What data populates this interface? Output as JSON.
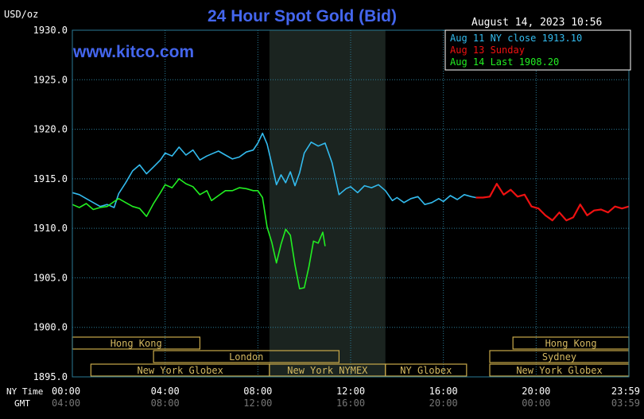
{
  "chart_data": {
    "type": "line",
    "title": "24 Hour Spot Gold (Bid)",
    "unit_label": "USD/oz",
    "watermark": "www.kitco.com",
    "timestamp": "August 14, 2023 10:56",
    "y_ticks": [
      "1930.0",
      "1925.0",
      "1920.0",
      "1915.0",
      "1910.0",
      "1905.0",
      "1900.0",
      "1895.0"
    ],
    "ylim": [
      1895,
      1930
    ],
    "xlim_hours": [
      0,
      24
    ],
    "x_ticks_ny": [
      "00:00",
      "04:00",
      "08:00",
      "12:00",
      "16:00",
      "20:00",
      "23:59"
    ],
    "x_ticks_gmt": [
      "04:00",
      "08:00",
      "12:00",
      "16:00",
      "20:00",
      "00:00",
      "03:59"
    ],
    "x_axis_labels": {
      "ny": "NY Time",
      "gmt": "GMT"
    },
    "legend": [
      {
        "label": "Aug 11 NY close 1913.10",
        "color": "#33bbee"
      },
      {
        "label": "Aug 13 Sunday",
        "color": "#ee1111"
      },
      {
        "label": "Aug 14 Last 1908.20",
        "color": "#22ee22"
      }
    ],
    "colors": {
      "aug11": "#33bbee",
      "aug13": "#ee1111",
      "aug14": "#22ee22",
      "grid": "#2a7a96",
      "axis_text": "#ffffff",
      "title": "#4466ee",
      "watermark": "#4466ee",
      "shade": "#1b2420",
      "session_border": "#c9a94a",
      "session_text": "#d4b860"
    },
    "shaded_region_hours": [
      8.5,
      13.5
    ],
    "sessions": [
      {
        "label": "Hong Kong",
        "row": 0,
        "start": 0,
        "end": 5.5
      },
      {
        "label": "London",
        "row": 1,
        "start": 3.5,
        "end": 11.5
      },
      {
        "label": "New York Globex",
        "row": 2,
        "start": 0.8,
        "end": 8.5
      },
      {
        "label": "New York NYMEX",
        "row": 2,
        "start": 8.5,
        "end": 13.5
      },
      {
        "label": "NY Globex",
        "row": 2,
        "start": 13.5,
        "end": 17.0
      },
      {
        "label": "Hong Kong",
        "row": 0,
        "start": 19.0,
        "end": 24.0
      },
      {
        "label": "Sydney",
        "row": 1,
        "start": 18.0,
        "end": 24.0
      },
      {
        "label": "New York Globex",
        "row": 2,
        "start": 18.0,
        "end": 24.0
      }
    ],
    "series": [
      {
        "name": "Aug 11 NY close 1913.10",
        "key": "aug11",
        "x": [
          0,
          0.3,
          0.6,
          0.9,
          1.2,
          1.5,
          1.8,
          2.0,
          2.3,
          2.6,
          2.9,
          3.2,
          3.5,
          3.8,
          4.0,
          4.3,
          4.6,
          4.9,
          5.2,
          5.5,
          5.8,
          6.0,
          6.3,
          6.6,
          6.9,
          7.2,
          7.5,
          7.8,
          8.0,
          8.2,
          8.4,
          8.6,
          8.8,
          9.0,
          9.2,
          9.4,
          9.6,
          9.8,
          10.0,
          10.3,
          10.6,
          10.9,
          11.2,
          11.5,
          11.8,
          12.0,
          12.3,
          12.6,
          12.9,
          13.2,
          13.5,
          13.8,
          14.0,
          14.3,
          14.6,
          14.9,
          15.2,
          15.5,
          15.8,
          16.0,
          16.3,
          16.6,
          16.9,
          17.2,
          17.4
        ],
        "values": [
          1913.6,
          1913.4,
          1913.0,
          1912.6,
          1912.2,
          1912.4,
          1912.1,
          1913.5,
          1914.6,
          1915.8,
          1916.4,
          1915.5,
          1916.2,
          1916.9,
          1917.6,
          1917.3,
          1918.2,
          1917.4,
          1917.9,
          1916.9,
          1917.3,
          1917.5,
          1917.8,
          1917.4,
          1917.0,
          1917.2,
          1917.7,
          1917.9,
          1918.6,
          1919.6,
          1918.5,
          1916.5,
          1914.4,
          1915.4,
          1914.6,
          1915.7,
          1914.3,
          1915.6,
          1917.6,
          1918.7,
          1918.3,
          1918.6,
          1916.6,
          1913.4,
          1914.0,
          1914.2,
          1913.6,
          1914.3,
          1914.1,
          1914.4,
          1913.8,
          1912.8,
          1913.1,
          1912.6,
          1913.0,
          1913.2,
          1912.4,
          1912.6,
          1913.0,
          1912.7,
          1913.3,
          1912.9,
          1913.4,
          1913.2,
          1913.1
        ]
      },
      {
        "name": "Aug 13 Sunday",
        "key": "aug13",
        "x": [
          17.4,
          17.7,
          18.0,
          18.3,
          18.6,
          18.9,
          19.2,
          19.5,
          19.8,
          20.1,
          20.4,
          20.7,
          21.0,
          21.3,
          21.6,
          21.9,
          22.2,
          22.5,
          22.8,
          23.1,
          23.4,
          23.7,
          24.0
        ],
        "values": [
          1913.1,
          1913.1,
          1913.2,
          1914.5,
          1913.4,
          1913.9,
          1913.2,
          1913.4,
          1912.2,
          1912.0,
          1911.3,
          1910.8,
          1911.6,
          1910.8,
          1911.1,
          1912.4,
          1911.3,
          1911.8,
          1911.9,
          1911.6,
          1912.2,
          1912.0,
          1912.2
        ]
      },
      {
        "name": "Aug 14 Last 1908.20",
        "key": "aug14",
        "x": [
          0,
          0.3,
          0.6,
          0.9,
          1.2,
          1.5,
          1.8,
          2.0,
          2.3,
          2.6,
          2.9,
          3.2,
          3.5,
          3.8,
          4.0,
          4.3,
          4.6,
          4.9,
          5.2,
          5.5,
          5.8,
          6.0,
          6.3,
          6.6,
          6.9,
          7.2,
          7.5,
          7.8,
          8.0,
          8.2,
          8.4,
          8.6,
          8.8,
          9.0,
          9.2,
          9.4,
          9.6,
          9.8,
          10.0,
          10.2,
          10.4,
          10.6,
          10.8,
          10.9
        ],
        "values": [
          1912.4,
          1912.1,
          1912.5,
          1911.9,
          1912.1,
          1912.2,
          1912.7,
          1913.0,
          1912.6,
          1912.2,
          1912.0,
          1911.2,
          1912.5,
          1913.6,
          1914.4,
          1914.1,
          1915.0,
          1914.5,
          1914.2,
          1913.4,
          1913.8,
          1912.8,
          1913.3,
          1913.8,
          1913.8,
          1914.1,
          1914.0,
          1913.8,
          1913.8,
          1913.1,
          1910.1,
          1908.6,
          1906.5,
          1908.4,
          1909.9,
          1909.3,
          1906.3,
          1903.9,
          1904.0,
          1906.1,
          1908.7,
          1908.5,
          1909.6,
          1908.2
        ]
      }
    ]
  }
}
